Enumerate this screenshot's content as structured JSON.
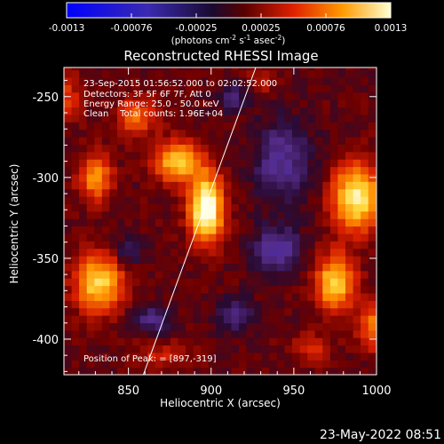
{
  "chart_data": {
    "type": "heatmap",
    "title": "Reconstructed RHESSI Image",
    "xlabel": "Heliocentric X (arcsec)",
    "ylabel": "Heliocentric Y (arcsec)",
    "xlim": [
      811,
      1000
    ],
    "ylim": [
      -422,
      -232
    ],
    "x_ticks": [
      850,
      900,
      950,
      1000
    ],
    "y_ticks": [
      -250,
      -300,
      -350,
      -400
    ],
    "grid": false,
    "colormap": "blue-black-red-yellow-white",
    "colorbar": {
      "min": -0.0013,
      "max": 0.0013,
      "ticks": [
        "-0.0013",
        "-0.00076",
        "-0.00025",
        "0.00025",
        "0.00076",
        "0.0013"
      ],
      "label_main": "(photons cm",
      "label_exp1": "-2",
      "label_mid": " s",
      "label_exp2": "-1",
      "label_end": " asec",
      "label_exp3": "-2",
      "label_close": ")"
    },
    "annotations": {
      "time_range": "23-Sep-2015 01:56:52.000 to 02:02:52.000",
      "detectors": "Detectors: 3F 5F 6F 7F, Att 0",
      "energy": "Energy Range: 25.0 - 50.0 keV",
      "clean": "Clean    Total counts: 1.96E+04",
      "peak": "Position of Peak: = [897,-319]"
    },
    "peak": [
      897,
      -319
    ],
    "limb_line": [
      [
        859,
        -422
      ],
      [
        927,
        -232
      ]
    ],
    "sources": [
      {
        "x": 897,
        "y": -319,
        "sx": 7,
        "sy": 14,
        "amp": 1.0
      },
      {
        "x": 880,
        "y": -290,
        "sx": 10,
        "sy": 9,
        "amp": 0.65
      },
      {
        "x": 855,
        "y": -262,
        "sx": 8,
        "sy": 8,
        "amp": 0.4
      },
      {
        "x": 830,
        "y": -300,
        "sx": 7,
        "sy": 10,
        "amp": 0.5
      },
      {
        "x": 832,
        "y": -365,
        "sx": 10,
        "sy": 12,
        "amp": 0.7
      },
      {
        "x": 810,
        "y": -250,
        "sx": 8,
        "sy": 10,
        "amp": 0.3
      },
      {
        "x": 988,
        "y": -312,
        "sx": 10,
        "sy": 14,
        "amp": 0.8
      },
      {
        "x": 975,
        "y": -365,
        "sx": 8,
        "sy": 12,
        "amp": 0.7
      },
      {
        "x": 1000,
        "y": -392,
        "sx": 8,
        "sy": 10,
        "amp": 0.45
      },
      {
        "x": 960,
        "y": -405,
        "sx": 8,
        "sy": 6,
        "amp": 0.25
      },
      {
        "x": 930,
        "y": -240,
        "sx": 6,
        "sy": 6,
        "amp": 0.2
      },
      {
        "x": 870,
        "y": -410,
        "sx": 12,
        "sy": 6,
        "amp": 0.2
      },
      {
        "x": 943,
        "y": -290,
        "sx": 12,
        "sy": 18,
        "amp": -0.35
      },
      {
        "x": 940,
        "y": -345,
        "sx": 10,
        "sy": 10,
        "amp": -0.4
      },
      {
        "x": 850,
        "y": -345,
        "sx": 6,
        "sy": 6,
        "amp": -0.25
      },
      {
        "x": 865,
        "y": -388,
        "sx": 8,
        "sy": 6,
        "amp": -0.3
      },
      {
        "x": 915,
        "y": -385,
        "sx": 8,
        "sy": 8,
        "amp": -0.25
      },
      {
        "x": 913,
        "y": -250,
        "sx": 7,
        "sy": 6,
        "amp": -0.25
      }
    ]
  },
  "footer": {
    "date": "23-May-2022 08:51"
  }
}
